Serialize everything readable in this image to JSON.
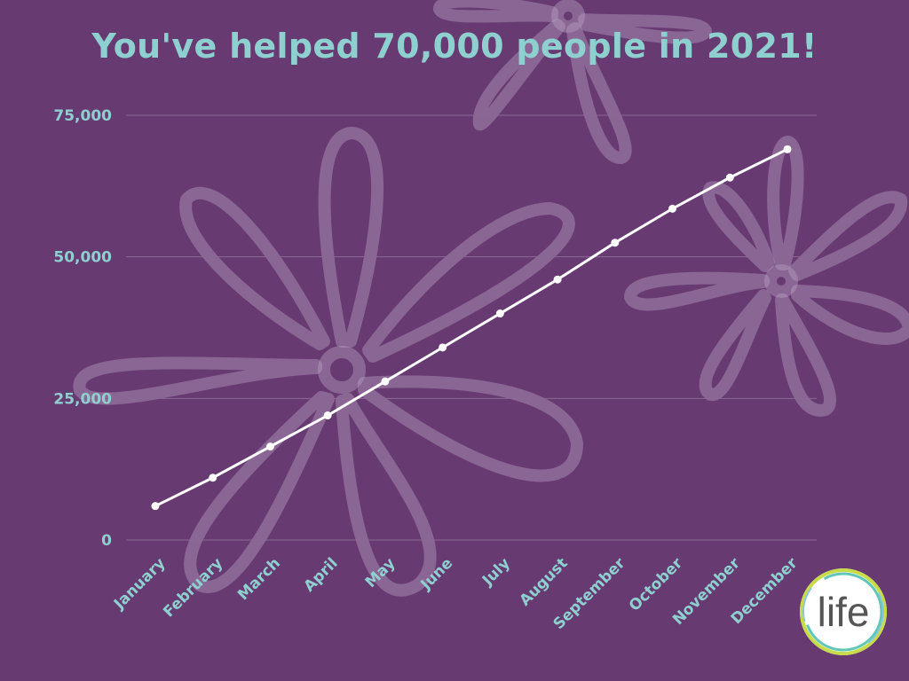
{
  "chart_data": {
    "type": "line",
    "title": "You've helped 70,000 people in 2021!",
    "xlabel": "",
    "ylabel": "",
    "categories": [
      "January",
      "February",
      "March",
      "April",
      "May",
      "June",
      "July",
      "August",
      "September",
      "October",
      "November",
      "December"
    ],
    "series": [
      {
        "values": [
          6000,
          11000,
          16500,
          22000,
          28000,
          34000,
          40000,
          46000,
          52500,
          58500,
          64000,
          69000
        ]
      }
    ],
    "ylim": [
      0,
      75000
    ],
    "yticks": [
      0,
      25000,
      50000,
      75000
    ],
    "ytick_labels": [
      "0",
      "25,000",
      "50,000",
      "75,000"
    ],
    "grid": true,
    "legend": "none"
  },
  "logo": {
    "text": "life"
  },
  "colors": {
    "background": "#683a72",
    "title": "#8ecfcf",
    "axis_labels": "#8ecfcf",
    "line": "#ffffff",
    "grid": "#8a6894",
    "flower": "#b49ebe"
  },
  "decor": {
    "icon": "flower-outline-icon"
  }
}
